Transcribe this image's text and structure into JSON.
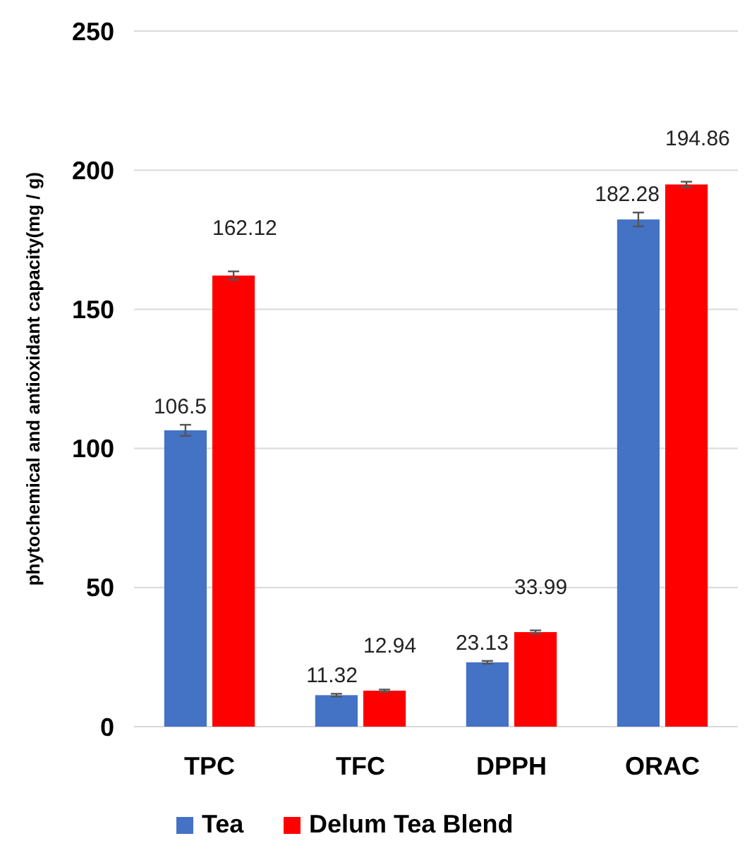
{
  "chart_data": {
    "type": "bar",
    "ylabel": "phytochemical and antioxidant capacity(mg / g)",
    "categories": [
      "TPC",
      "TFC",
      "DPPH",
      "ORAC"
    ],
    "series": [
      {
        "name": "Tea",
        "color": "#4472c4",
        "values": [
          106.5,
          11.32,
          23.13,
          182.28
        ],
        "errors": [
          2,
          0.5,
          0.5,
          2.5
        ]
      },
      {
        "name": "Delum Tea Blend",
        "color": "#ff0000",
        "values": [
          162.12,
          12.94,
          33.99,
          194.86
        ],
        "errors": [
          1.5,
          0.4,
          0.6,
          1
        ]
      }
    ],
    "ylim": [
      0,
      250
    ],
    "yticks": [
      0,
      50,
      100,
      150,
      200,
      250
    ],
    "grid": "y",
    "legend": "bottom",
    "data_labels": true
  }
}
